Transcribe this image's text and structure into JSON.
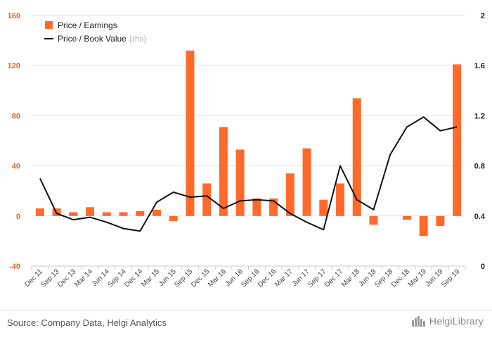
{
  "chart_data": {
    "type": "bar+line",
    "categories": [
      "Dec 11",
      "Sep 13",
      "Dec 13",
      "Mar 14",
      "Jun 14",
      "Sep 14",
      "Dec 14",
      "Mar 15",
      "Jun 15",
      "Sep 15",
      "Dec 15",
      "Mar 16",
      "Jun 16",
      "Sep 16",
      "Dec 16",
      "Mar 17",
      "Jun 17",
      "Sep 17",
      "Dec 17",
      "Mar 18",
      "Jun 18",
      "Sep 18",
      "Dec 18",
      "Mar 19",
      "Jun 19",
      "Sep 19"
    ],
    "series": [
      {
        "name": "Price / Earnings",
        "type": "bar",
        "axis": "left",
        "values": [
          6,
          6,
          3,
          7,
          3,
          3,
          4,
          5,
          -4,
          132,
          26,
          71,
          53,
          14,
          14,
          34,
          54,
          13,
          26,
          94,
          -7,
          0,
          -3,
          -16,
          -8,
          121
        ]
      },
      {
        "name": "Price / Book Value",
        "name_suffix": "(rhs)",
        "type": "line",
        "axis": "right",
        "values": [
          0.7,
          0.42,
          0.37,
          0.39,
          0.35,
          0.3,
          0.28,
          0.51,
          0.59,
          0.55,
          0.56,
          0.46,
          0.52,
          0.53,
          0.52,
          0.42,
          0.35,
          0.29,
          0.8,
          0.53,
          0.45,
          0.89,
          1.11,
          1.19,
          1.08,
          1.11
        ]
      }
    ],
    "y_left": {
      "min": -40,
      "max": 160,
      "ticks": [
        -40,
        0,
        40,
        80,
        120,
        160
      ]
    },
    "y_right": {
      "min": 0,
      "max": 2,
      "ticks": [
        0,
        0.4,
        0.8,
        1.2,
        1.6,
        2
      ],
      "tick_labels": [
        "0",
        "0.4",
        "0.8",
        "1.2",
        "1.6",
        "2"
      ]
    },
    "legend_position": "top-left",
    "grid": "horizontal",
    "colors": {
      "bar": "#ff6a2a",
      "line": "#111111",
      "left_ticks": "#e8622a",
      "grid": "#e3e3e3"
    }
  },
  "footer": {
    "source": "Source: Company Data, Helgi Analytics",
    "logo_text": "HelgiLibrary",
    "logo_icon": "city-skyline-icon"
  }
}
